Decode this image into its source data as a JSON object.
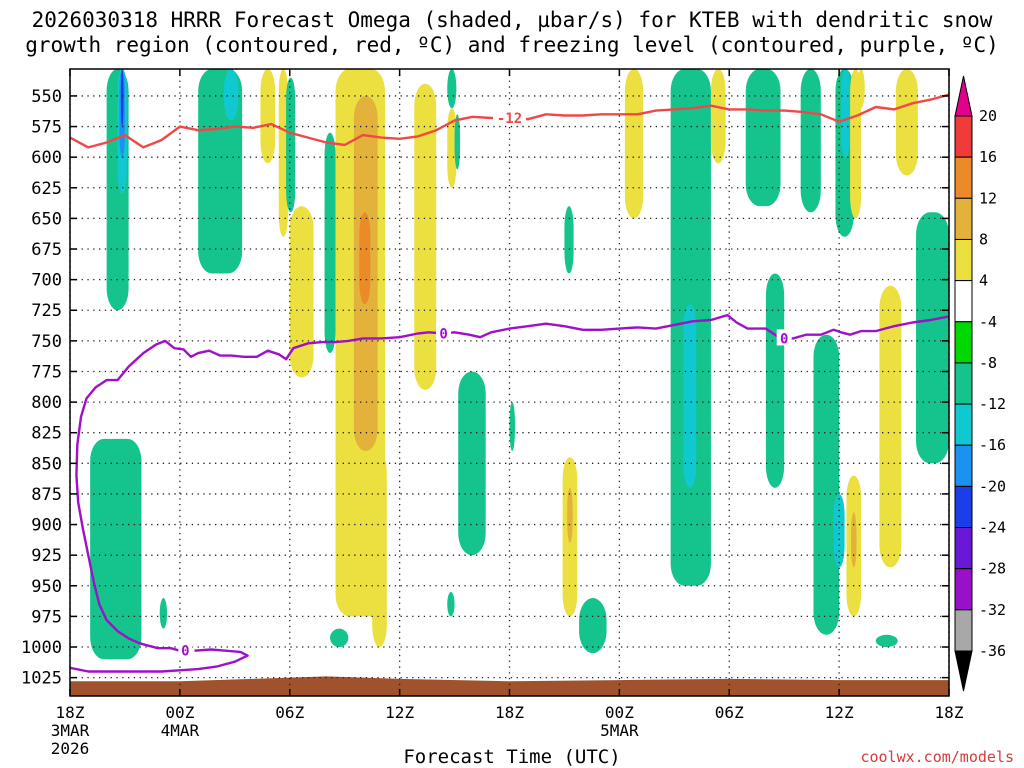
{
  "title": {
    "line1": "2026030318 HRRR Forecast Omega (shaded, µbar/s) for KTEB with dendritic snow",
    "line2": "growth region (contoured, red, ºC) and freezing level (contoured, purple, ºC)"
  },
  "x_axis_title": "Forecast Time (UTC)",
  "credit": "coolwx.com/models",
  "chart_data": {
    "type": "heatmap",
    "title": "2026030318 HRRR Forecast Omega (shaded, µbar/s) for KTEB with dendritic snow growth region (contoured, red, ºC) and freezing level (contoured, purple, ºC)",
    "xlabel": "Forecast Time (UTC)",
    "ylabel": "Pressure (mb)",
    "xlim": [
      0,
      48
    ],
    "ylim": [
      1040,
      528
    ],
    "y_ticks": [
      550,
      575,
      600,
      625,
      650,
      675,
      700,
      725,
      750,
      775,
      800,
      825,
      850,
      875,
      900,
      925,
      950,
      975,
      1000,
      1025
    ],
    "x_ticks": [
      {
        "hour": 0,
        "label": "18Z",
        "sub1": "3MAR",
        "sub2": "2026"
      },
      {
        "hour": 6,
        "label": "00Z",
        "sub1": "4MAR",
        "sub2": ""
      },
      {
        "hour": 12,
        "label": "06Z",
        "sub1": "",
        "sub2": ""
      },
      {
        "hour": 18,
        "label": "12Z",
        "sub1": "",
        "sub2": ""
      },
      {
        "hour": 24,
        "label": "18Z",
        "sub1": "",
        "sub2": ""
      },
      {
        "hour": 30,
        "label": "00Z",
        "sub1": "5MAR",
        "sub2": ""
      },
      {
        "hour": 36,
        "label": "06Z",
        "sub1": "",
        "sub2": ""
      },
      {
        "hour": 42,
        "label": "12Z",
        "sub1": "",
        "sub2": ""
      },
      {
        "hour": 48,
        "label": "18Z",
        "sub1": "",
        "sub2": ""
      }
    ],
    "colorbar": {
      "labels": [
        "20",
        "16",
        "12",
        "8",
        "4",
        "-4",
        "-8",
        "-12",
        "-16",
        "-20",
        "-24",
        "-28",
        "-32",
        "-36"
      ],
      "bins": [
        {
          "lo": 20,
          "hi": 24,
          "color": "#e0008a"
        },
        {
          "lo": 16,
          "hi": 20,
          "color": "#f03b3b"
        },
        {
          "lo": 12,
          "hi": 16,
          "color": "#ec8a28"
        },
        {
          "lo": 8,
          "hi": 12,
          "color": "#e2b23a"
        },
        {
          "lo": 4,
          "hi": 8,
          "color": "#ece040"
        },
        {
          "lo": -4,
          "hi": 4,
          "color": "#ffffff"
        },
        {
          "lo": -8,
          "hi": -4,
          "color": "#00d800"
        },
        {
          "lo": -12,
          "hi": -8,
          "color": "#14c48c"
        },
        {
          "lo": -16,
          "hi": -12,
          "color": "#10c8d0"
        },
        {
          "lo": -20,
          "hi": -16,
          "color": "#1c92f0"
        },
        {
          "lo": -24,
          "hi": -20,
          "color": "#1a3ee8"
        },
        {
          "lo": -28,
          "hi": -24,
          "color": "#6a18d8"
        },
        {
          "lo": -32,
          "hi": -28,
          "color": "#9a10c8"
        },
        {
          "lo": -36,
          "hi": -32,
          "color": "#a8a8a8"
        },
        {
          "lo": -40,
          "hi": -36,
          "color": "#000000"
        }
      ]
    },
    "shaded_regions": [
      {
        "band": "-8",
        "x0": 2.0,
        "x1": 3.2,
        "p_top": 528,
        "p_bot": 725
      },
      {
        "band": "-12",
        "x0": 2.6,
        "x1": 3.1,
        "p_top": 528,
        "p_bot": 630
      },
      {
        "band": "-16",
        "x0": 2.7,
        "x1": 3.0,
        "p_top": 528,
        "p_bot": 600
      },
      {
        "band": "-20",
        "x0": 2.78,
        "x1": 2.92,
        "p_top": 528,
        "p_bot": 575
      },
      {
        "band": "-8",
        "x0": 1.1,
        "x1": 3.9,
        "p_top": 830,
        "p_bot": 1010
      },
      {
        "band": "-8",
        "x0": 4.9,
        "x1": 5.3,
        "p_top": 960,
        "p_bot": 985
      },
      {
        "band": "-8",
        "x0": 7.0,
        "x1": 9.4,
        "p_top": 528,
        "p_bot": 695
      },
      {
        "band": "-12",
        "x0": 8.4,
        "x1": 9.2,
        "p_top": 528,
        "p_bot": 570
      },
      {
        "band": "4",
        "x0": 10.4,
        "x1": 11.2,
        "p_top": 528,
        "p_bot": 605
      },
      {
        "band": "4",
        "x0": 11.4,
        "x1": 11.9,
        "p_top": 528,
        "p_bot": 665
      },
      {
        "band": "-8",
        "x0": 11.8,
        "x1": 12.3,
        "p_top": 535,
        "p_bot": 645
      },
      {
        "band": "4",
        "x0": 12.0,
        "x1": 13.3,
        "p_top": 640,
        "p_bot": 780
      },
      {
        "band": "-8",
        "x0": 13.9,
        "x1": 14.5,
        "p_top": 580,
        "p_bot": 760
      },
      {
        "band": "-8",
        "x0": 14.2,
        "x1": 15.2,
        "p_top": 985,
        "p_bot": 1000
      },
      {
        "band": "4",
        "x0": 14.5,
        "x1": 17.2,
        "p_top": 528,
        "p_bot": 975
      },
      {
        "band": "8",
        "x0": 15.5,
        "x1": 16.8,
        "p_top": 550,
        "p_bot": 840
      },
      {
        "band": "12",
        "x0": 15.8,
        "x1": 16.4,
        "p_top": 645,
        "p_bot": 720
      },
      {
        "band": "4",
        "x0": 16.5,
        "x1": 17.3,
        "p_top": 840,
        "p_bot": 1000
      },
      {
        "band": "4",
        "x0": 18.8,
        "x1": 20.0,
        "p_top": 540,
        "p_bot": 790
      },
      {
        "band": "-8",
        "x0": 20.6,
        "x1": 21.1,
        "p_top": 528,
        "p_bot": 560
      },
      {
        "band": "4",
        "x0": 20.6,
        "x1": 21.1,
        "p_top": 560,
        "p_bot": 625
      },
      {
        "band": "-8",
        "x0": 21.0,
        "x1": 21.3,
        "p_top": 565,
        "p_bot": 610
      },
      {
        "band": "-8",
        "x0": 20.6,
        "x1": 21.0,
        "p_top": 955,
        "p_bot": 975
      },
      {
        "band": "-8",
        "x0": 21.2,
        "x1": 22.7,
        "p_top": 775,
        "p_bot": 925
      },
      {
        "band": "-8",
        "x0": 24.0,
        "x1": 24.3,
        "p_top": 800,
        "p_bot": 840
      },
      {
        "band": "-8",
        "x0": 27.0,
        "x1": 27.5,
        "p_top": 640,
        "p_bot": 695
      },
      {
        "band": "4",
        "x0": 26.9,
        "x1": 27.7,
        "p_top": 845,
        "p_bot": 975
      },
      {
        "band": "8",
        "x0": 27.15,
        "x1": 27.45,
        "p_top": 870,
        "p_bot": 915
      },
      {
        "band": "-8",
        "x0": 27.8,
        "x1": 29.3,
        "p_top": 960,
        "p_bot": 1005
      },
      {
        "band": "4",
        "x0": 30.3,
        "x1": 31.3,
        "p_top": 528,
        "p_bot": 650
      },
      {
        "band": "-8",
        "x0": 32.8,
        "x1": 35.0,
        "p_top": 528,
        "p_bot": 950
      },
      {
        "band": "-12",
        "x0": 33.5,
        "x1": 34.2,
        "p_top": 720,
        "p_bot": 870
      },
      {
        "band": "4",
        "x0": 35.0,
        "x1": 35.8,
        "p_top": 528,
        "p_bot": 605
      },
      {
        "band": "-8",
        "x0": 36.9,
        "x1": 38.8,
        "p_top": 528,
        "p_bot": 640
      },
      {
        "band": "-8",
        "x0": 38.0,
        "x1": 39.0,
        "p_top": 695,
        "p_bot": 870
      },
      {
        "band": "-8",
        "x0": 39.9,
        "x1": 41.0,
        "p_top": 528,
        "p_bot": 645
      },
      {
        "band": "-8",
        "x0": 40.6,
        "x1": 42.0,
        "p_top": 745,
        "p_bot": 990
      },
      {
        "band": "-8",
        "x0": 41.8,
        "x1": 42.8,
        "p_top": 528,
        "p_bot": 665
      },
      {
        "band": "-12",
        "x0": 42.1,
        "x1": 42.6,
        "p_top": 528,
        "p_bot": 600
      },
      {
        "band": "4",
        "x0": 42.6,
        "x1": 43.2,
        "p_top": 528,
        "p_bot": 650
      },
      {
        "band": "-12",
        "x0": 41.7,
        "x1": 42.3,
        "p_top": 875,
        "p_bot": 935
      },
      {
        "band": "4",
        "x0": 42.4,
        "x1": 43.2,
        "p_top": 860,
        "p_bot": 975
      },
      {
        "band": "8",
        "x0": 42.65,
        "x1": 42.95,
        "p_top": 890,
        "p_bot": 935
      },
      {
        "band": "4",
        "x0": 43.0,
        "x1": 43.4,
        "p_top": 528,
        "p_bot": 560
      },
      {
        "band": "4",
        "x0": 44.2,
        "x1": 45.4,
        "p_top": 705,
        "p_bot": 935
      },
      {
        "band": "4",
        "x0": 45.1,
        "x1": 46.3,
        "p_top": 528,
        "p_bot": 615
      },
      {
        "band": "-8",
        "x0": 44.0,
        "x1": 45.2,
        "p_top": 990,
        "p_bot": 1000
      },
      {
        "band": "-8",
        "x0": 46.2,
        "x1": 48.0,
        "p_top": 645,
        "p_bot": 850
      }
    ],
    "series": [
      {
        "name": "dendritic snow growth (-12 ºC)",
        "color": "#f04848",
        "label": "-12",
        "label_at": 24.5,
        "points": [
          [
            0,
            584
          ],
          [
            1,
            592
          ],
          [
            2,
            588
          ],
          [
            3,
            582
          ],
          [
            4,
            592
          ],
          [
            5,
            586
          ],
          [
            6,
            575
          ],
          [
            7,
            578
          ],
          [
            8,
            577
          ],
          [
            9,
            575
          ],
          [
            10,
            576
          ],
          [
            11,
            573
          ],
          [
            12,
            580
          ],
          [
            13,
            584
          ],
          [
            14,
            588
          ],
          [
            15,
            590
          ],
          [
            16,
            582
          ],
          [
            17,
            584
          ],
          [
            18,
            585
          ],
          [
            19,
            583
          ],
          [
            20,
            578
          ],
          [
            21,
            570
          ],
          [
            22,
            567
          ],
          [
            23,
            568
          ],
          [
            24,
            568
          ],
          [
            25,
            569
          ],
          [
            26,
            565
          ],
          [
            27,
            566
          ],
          [
            28,
            566
          ],
          [
            29,
            565
          ],
          [
            30,
            565
          ],
          [
            31,
            565
          ],
          [
            32,
            562
          ],
          [
            33,
            561
          ],
          [
            34,
            560
          ],
          [
            35,
            558
          ],
          [
            36,
            561
          ],
          [
            37,
            561
          ],
          [
            38,
            562
          ],
          [
            39,
            562
          ],
          [
            40,
            563
          ],
          [
            41,
            565
          ],
          [
            42,
            571
          ],
          [
            43,
            566
          ],
          [
            44,
            559
          ],
          [
            45,
            561
          ],
          [
            46,
            556
          ],
          [
            47,
            553
          ],
          [
            48,
            549
          ]
        ]
      },
      {
        "name": "freezing level (0 ºC)",
        "color": "#a010c8",
        "label": "0",
        "label_at": 20.3,
        "label2_at": 39.0,
        "points": [
          [
            6,
            1003
          ],
          [
            5.5,
            1001
          ],
          [
            4.8,
            1001
          ],
          [
            3.8,
            997
          ],
          [
            3.2,
            993
          ],
          [
            2.6,
            987
          ],
          [
            2,
            978
          ],
          [
            1.6,
            965
          ],
          [
            1.3,
            947
          ],
          [
            1.0,
            925
          ],
          [
            0.7,
            903
          ],
          [
            0.45,
            882
          ],
          [
            0.35,
            860
          ],
          [
            0.4,
            835
          ],
          [
            0.6,
            812
          ],
          [
            0.9,
            797
          ],
          [
            1.4,
            788
          ],
          [
            2.0,
            782
          ],
          [
            2.6,
            782
          ],
          [
            3.2,
            771
          ],
          [
            4.0,
            760
          ],
          [
            4.7,
            753
          ],
          [
            5.2,
            750
          ],
          [
            5.7,
            756
          ],
          [
            6.2,
            757
          ],
          [
            6.6,
            763
          ],
          [
            7.0,
            760
          ],
          [
            7.6,
            758
          ],
          [
            8.2,
            762
          ],
          [
            8.8,
            762
          ],
          [
            9.5,
            763
          ],
          [
            10.2,
            763
          ],
          [
            10.8,
            758
          ],
          [
            11.4,
            761
          ],
          [
            11.8,
            765
          ],
          [
            12.2,
            756
          ],
          [
            13.0,
            752
          ],
          [
            13.8,
            751
          ],
          [
            14.5,
            751
          ],
          [
            15.2,
            750
          ],
          [
            16,
            748
          ],
          [
            17,
            748
          ],
          [
            18,
            747
          ],
          [
            19,
            744
          ],
          [
            19.6,
            743
          ],
          [
            20.4,
            744
          ],
          [
            21,
            743
          ],
          [
            21.8,
            745
          ],
          [
            22.4,
            747
          ],
          [
            23,
            743
          ],
          [
            24,
            740
          ],
          [
            25,
            738
          ],
          [
            26,
            736
          ],
          [
            27,
            738
          ],
          [
            28,
            741
          ],
          [
            29,
            741
          ],
          [
            30,
            740
          ],
          [
            31,
            739
          ],
          [
            32,
            740
          ],
          [
            33,
            737
          ],
          [
            34,
            734
          ],
          [
            35,
            733
          ],
          [
            35.9,
            729
          ],
          [
            36.4,
            735
          ],
          [
            37,
            740
          ],
          [
            38,
            740
          ],
          [
            38.6,
            746
          ],
          [
            39.0,
            748
          ],
          [
            39.5,
            748
          ],
          [
            40.2,
            745
          ],
          [
            41.0,
            745
          ],
          [
            41.7,
            741
          ],
          [
            42.1,
            743
          ],
          [
            42.6,
            745
          ],
          [
            43.2,
            742
          ],
          [
            44,
            742
          ],
          [
            45,
            738
          ],
          [
            46,
            735
          ],
          [
            47,
            733
          ],
          [
            48,
            730
          ]
        ]
      },
      {
        "name": "freezing level near surface (0 ºC)",
        "color": "#a010c8",
        "points": [
          [
            0,
            1017
          ],
          [
            1,
            1020
          ],
          [
            2,
            1020
          ],
          [
            3,
            1020
          ],
          [
            4,
            1020
          ],
          [
            5,
            1020
          ],
          [
            6,
            1019
          ],
          [
            7,
            1018
          ],
          [
            8,
            1016
          ],
          [
            9,
            1012
          ],
          [
            9.7,
            1007
          ],
          [
            9.3,
            1004
          ],
          [
            8.5,
            1003
          ],
          [
            7.7,
            1002
          ],
          [
            6.8,
            1003
          ]
        ]
      }
    ],
    "ground": {
      "color": "#a0522d"
    }
  }
}
